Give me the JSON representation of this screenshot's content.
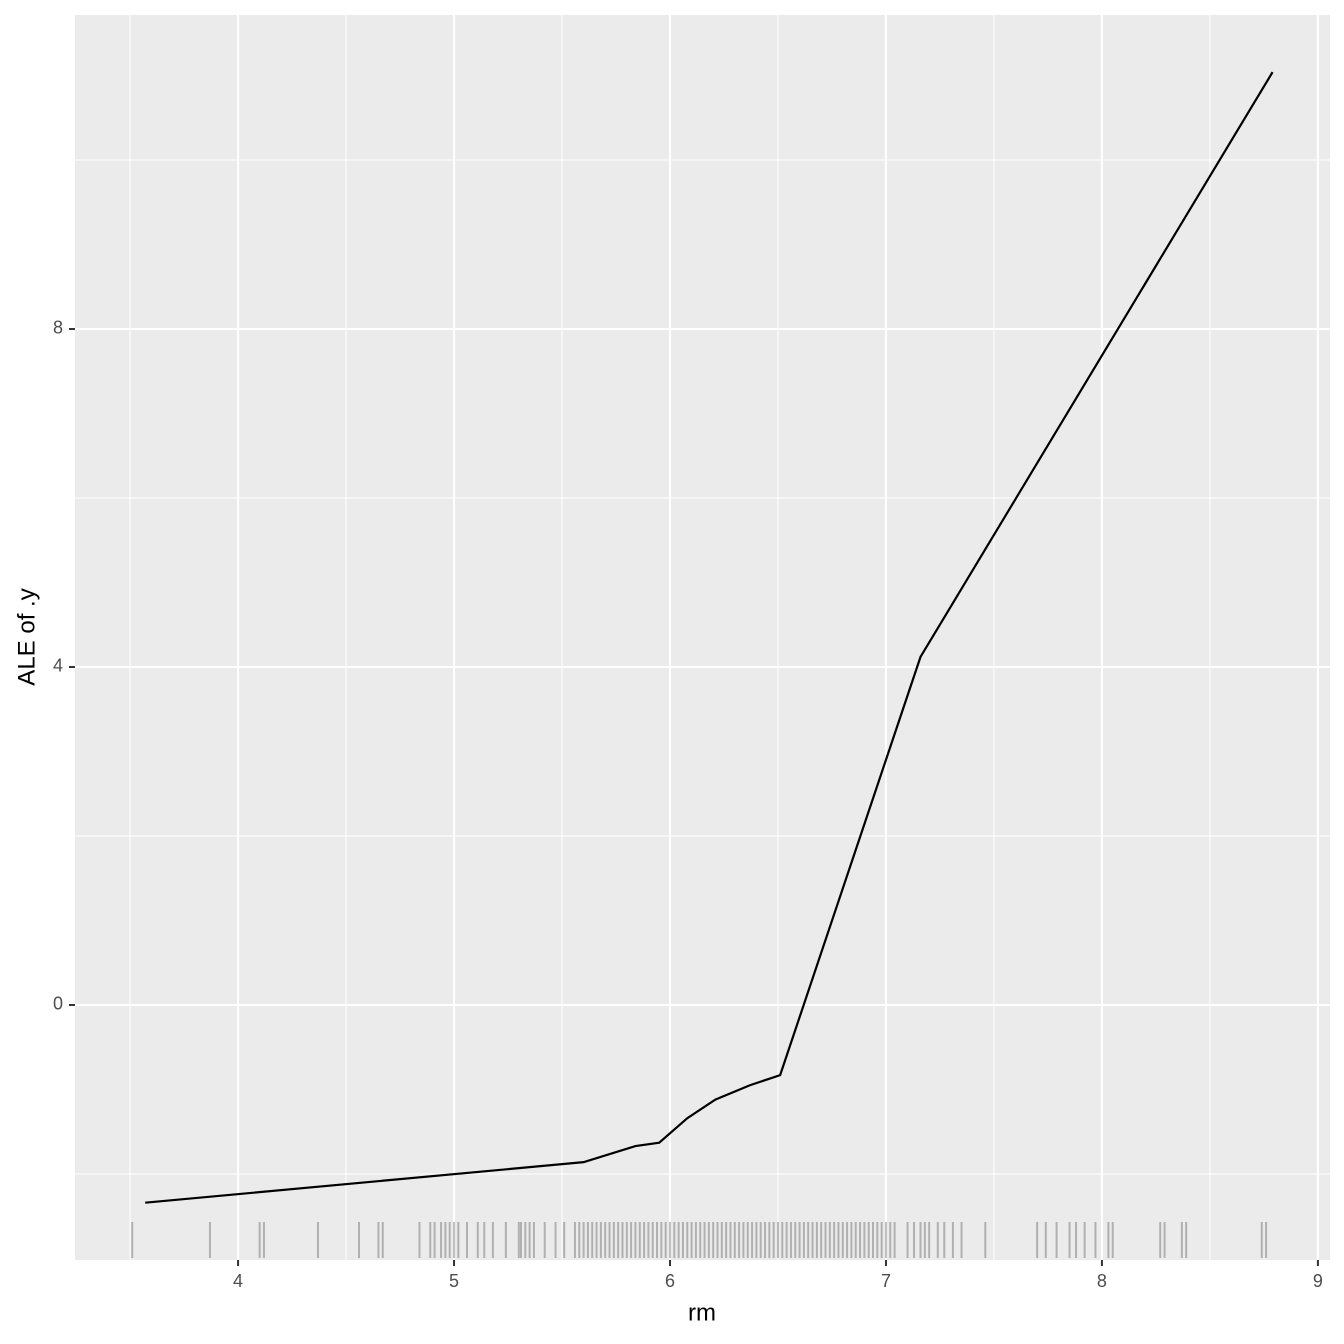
{
  "chart_data": {
    "type": "line",
    "x_label": "rm",
    "y_label": "ALE of .y",
    "grid": true,
    "color": "#000000",
    "x": [
      3.57,
      5.6,
      5.84,
      5.95,
      6.08,
      6.21,
      6.37,
      6.51,
      7.16,
      8.79
    ],
    "values": [
      -2.34,
      -1.86,
      -1.67,
      -1.63,
      -1.34,
      -1.12,
      -0.95,
      -0.83,
      4.12,
      11.04
    ],
    "rug": [
      3.51,
      3.87,
      4.1,
      4.12,
      4.37,
      4.56,
      4.65,
      4.67,
      4.84,
      4.89,
      4.91,
      4.94,
      4.96,
      4.98,
      5.0,
      5.02,
      5.06,
      5.11,
      5.14,
      5.18,
      5.24,
      5.3,
      5.31,
      5.33,
      5.35,
      5.37,
      5.42,
      5.47,
      5.51,
      5.56,
      5.58,
      5.6,
      5.62,
      5.64,
      5.66,
      5.68,
      5.7,
      5.72,
      5.74,
      5.76,
      5.78,
      5.8,
      5.82,
      5.84,
      5.86,
      5.88,
      5.9,
      5.92,
      5.94,
      5.96,
      5.98,
      6.0,
      6.02,
      6.04,
      6.06,
      6.08,
      6.1,
      6.12,
      6.14,
      6.16,
      6.18,
      6.2,
      6.22,
      6.24,
      6.26,
      6.28,
      6.3,
      6.32,
      6.34,
      6.36,
      6.38,
      6.4,
      6.42,
      6.44,
      6.46,
      6.48,
      6.5,
      6.52,
      6.54,
      6.56,
      6.58,
      6.6,
      6.62,
      6.64,
      6.66,
      6.68,
      6.7,
      6.72,
      6.74,
      6.76,
      6.78,
      6.8,
      6.82,
      6.84,
      6.86,
      6.88,
      6.9,
      6.92,
      6.94,
      6.96,
      6.98,
      7.0,
      7.02,
      7.04,
      7.1,
      7.13,
      7.16,
      7.18,
      7.2,
      7.24,
      7.27,
      7.31,
      7.35,
      7.46,
      7.7,
      7.74,
      7.79,
      7.85,
      7.88,
      7.92,
      7.97,
      8.03,
      8.05,
      8.27,
      8.29,
      8.37,
      8.39,
      8.74,
      8.76
    ],
    "xlim": [
      3.245,
      9.056
    ],
    "ylim": [
      -3.018,
      11.716
    ],
    "xticks": [
      4,
      5,
      6,
      7,
      8,
      9
    ],
    "yticks": [
      0,
      4,
      8
    ]
  }
}
